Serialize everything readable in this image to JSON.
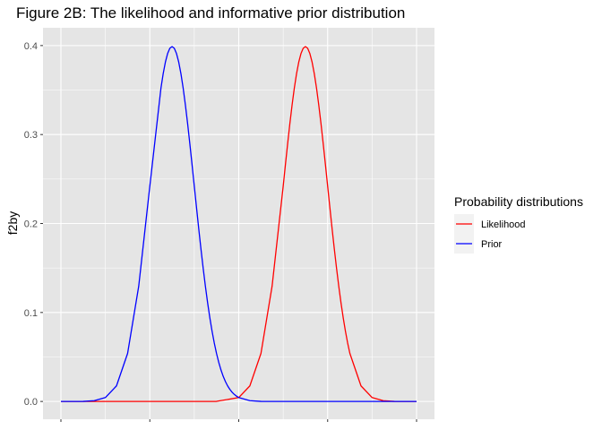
{
  "chart_data": {
    "type": "line",
    "title": "Figure 2B: The likelihood and informative prior distribution",
    "xlabel": "",
    "ylabel": "f2by",
    "ylim": [
      -0.02,
      0.42
    ],
    "y_ticks": [
      0.0,
      0.1,
      0.2,
      0.3,
      0.4
    ],
    "y_tick_labels": [
      "0.0",
      "0.1",
      "0.2",
      "0.3",
      "0.4"
    ],
    "x_range": [
      0,
      8
    ],
    "x_tick_labels": [],
    "grid": true,
    "legend": {
      "title": "Probability distributions",
      "position": "right",
      "entries": [
        "Likelihood",
        "Prior"
      ]
    },
    "series": [
      {
        "name": "Likelihood",
        "color": "#ff0000",
        "x": [
          0,
          3.0,
          3.5,
          4.0,
          4.25,
          4.5,
          4.75,
          5.0,
          5.05,
          5.1,
          5.15,
          5.2,
          5.25,
          5.3,
          5.35,
          5.4,
          5.45,
          5.5,
          5.55,
          5.6,
          5.65,
          5.7,
          5.75,
          5.8,
          5.85,
          5.9,
          5.95,
          6.0,
          6.05,
          6.1,
          6.15,
          6.2,
          6.25,
          6.3,
          6.35,
          6.4,
          6.45,
          6.5,
          6.75,
          7.0,
          7.25,
          7.5,
          8.0
        ],
        "y": [
          0,
          0,
          0.0001,
          0.0044,
          0.0175,
          0.054,
          0.1295,
          0.242,
          0.2661,
          0.2897,
          0.3123,
          0.3332,
          0.3521,
          0.3683,
          0.3814,
          0.391,
          0.397,
          0.3989,
          0.397,
          0.391,
          0.3814,
          0.3683,
          0.3521,
          0.3332,
          0.3123,
          0.2897,
          0.2661,
          0.242,
          0.2179,
          0.1942,
          0.1714,
          0.1497,
          0.1295,
          0.1109,
          0.094,
          0.079,
          0.0656,
          0.054,
          0.0175,
          0.0044,
          0.0009,
          0.0001,
          0
        ]
      },
      {
        "name": "Prior",
        "color": "#0000ff",
        "x": [
          0,
          0.5,
          0.75,
          1.0,
          1.25,
          1.5,
          1.75,
          2.0,
          2.25,
          2.3,
          2.35,
          2.4,
          2.45,
          2.5,
          2.55,
          2.6,
          2.65,
          2.7,
          2.75,
          2.8,
          2.85,
          2.9,
          2.95,
          3.0,
          3.05,
          3.1,
          3.15,
          3.2,
          3.25,
          3.3,
          3.35,
          3.4,
          3.45,
          3.5,
          3.55,
          3.6,
          3.65,
          3.7,
          3.75,
          3.8,
          3.85,
          3.9,
          3.95,
          4.0,
          4.25,
          4.5,
          4.75,
          5.0,
          5.25,
          5.5,
          6.0,
          8.0
        ],
        "y": [
          0,
          0.0001,
          0.0009,
          0.0044,
          0.0175,
          0.054,
          0.1295,
          0.242,
          0.3521,
          0.3683,
          0.3814,
          0.391,
          0.397,
          0.3989,
          0.397,
          0.391,
          0.3814,
          0.3683,
          0.3521,
          0.3332,
          0.3123,
          0.2897,
          0.2661,
          0.242,
          0.2179,
          0.1942,
          0.1714,
          0.1497,
          0.1295,
          0.1109,
          0.094,
          0.079,
          0.0656,
          0.054,
          0.044,
          0.0355,
          0.0283,
          0.0224,
          0.0175,
          0.0136,
          0.0104,
          0.0079,
          0.006,
          0.0044,
          0.0009,
          0.0001,
          2e-05,
          0,
          0,
          0,
          0,
          0
        ]
      }
    ]
  }
}
